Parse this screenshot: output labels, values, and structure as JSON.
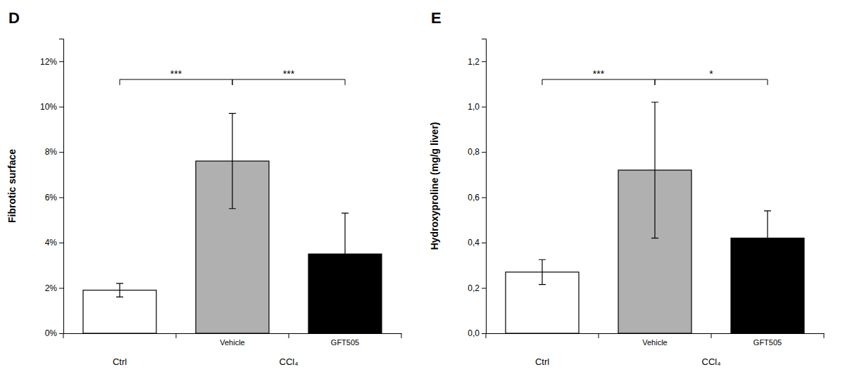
{
  "chart_data": [
    {
      "type": "bar",
      "title": "D",
      "ylabel": "Fibrotic surface",
      "categories": [
        null,
        "Vehicle",
        "GFT505"
      ],
      "values": [
        0.019,
        0.076,
        0.035
      ],
      "errors": [
        0.003,
        0.021,
        0.018
      ],
      "colors": [
        "white",
        "#b0b0b0",
        "black"
      ],
      "ylim": [
        0,
        0.13
      ],
      "yticks": [
        {
          "value": 0.0,
          "label": "0%"
        },
        {
          "value": 0.02,
          "label": "2%"
        },
        {
          "value": 0.04,
          "label": "4%"
        },
        {
          "value": 0.06,
          "label": "6%"
        },
        {
          "value": 0.08,
          "label": "8%"
        },
        {
          "value": 0.1,
          "label": "10%"
        },
        {
          "value": 0.12,
          "label": "12%"
        }
      ],
      "groups": [
        {
          "text": "Ctrl",
          "from": 0,
          "to": 0
        },
        {
          "text": "CCl₄",
          "from": 1,
          "to": 2
        }
      ],
      "annotations": [
        {
          "text": "***",
          "x1": 0,
          "x2": 1,
          "y": 0.112
        },
        {
          "text": "***",
          "x1": 1,
          "x2": 2,
          "y": 0.112
        }
      ]
    },
    {
      "type": "bar",
      "title": "E",
      "ylabel": "Hydroxyproline (mg/g liver)",
      "categories": [
        null,
        "Vehicle",
        "GFT505"
      ],
      "values": [
        0.27,
        0.72,
        0.42
      ],
      "errors": [
        0.055,
        0.3,
        0.12
      ],
      "colors": [
        "white",
        "#b0b0b0",
        "black"
      ],
      "ylim": [
        0,
        1.3
      ],
      "yticks": [
        {
          "value": 0.0,
          "label": "0,0"
        },
        {
          "value": 0.2,
          "label": "0,2"
        },
        {
          "value": 0.4,
          "label": "0,4"
        },
        {
          "value": 0.6,
          "label": "0,6"
        },
        {
          "value": 0.8,
          "label": "0,8"
        },
        {
          "value": 1.0,
          "label": "1,0"
        },
        {
          "value": 1.2,
          "label": "1,2"
        }
      ],
      "groups": [
        {
          "text": "Ctrl",
          "from": 0,
          "to": 0
        },
        {
          "text": "CCl₄",
          "from": 1,
          "to": 2
        }
      ],
      "annotations": [
        {
          "text": "***",
          "x1": 0,
          "x2": 1,
          "y": 1.12
        },
        {
          "text": "*",
          "x1": 1,
          "x2": 2,
          "y": 1.12
        }
      ]
    }
  ]
}
